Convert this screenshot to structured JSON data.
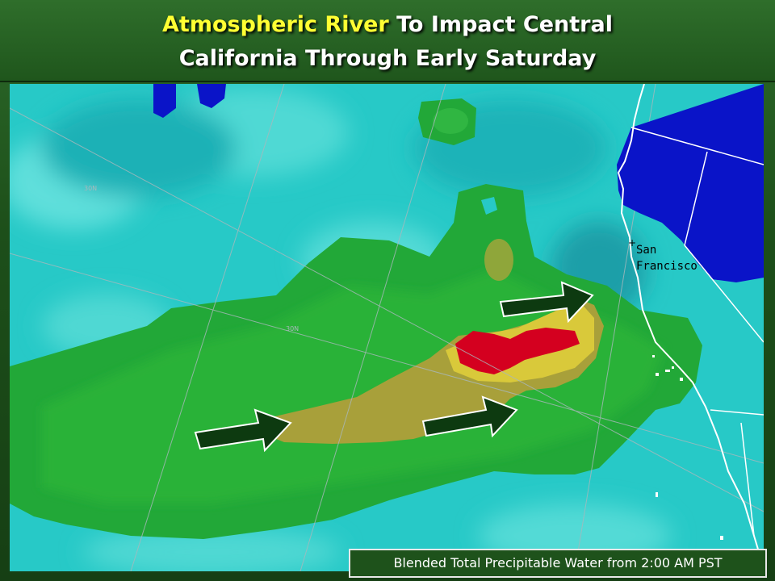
{
  "title": {
    "highlight": "Atmospheric River",
    "line1_rest": " To Impact Central",
    "line2": "California Through Early Saturday"
  },
  "map": {
    "city_label_line1": "San",
    "city_label_line2": "Francisco",
    "grid_label": "30N",
    "colors": {
      "ocean_low": "#27c9c7",
      "moderate": "#22a838",
      "high": "#a8a03a",
      "very_high": "#d9c93a",
      "extreme": "#d4001f",
      "land_blue": "#0a14c8",
      "arrow_fill": "#0d3a10",
      "arrow_stroke": "#ffffff"
    },
    "arrows": 3
  },
  "caption": "Blended Total Precipitable Water from 2:00 AM PST"
}
